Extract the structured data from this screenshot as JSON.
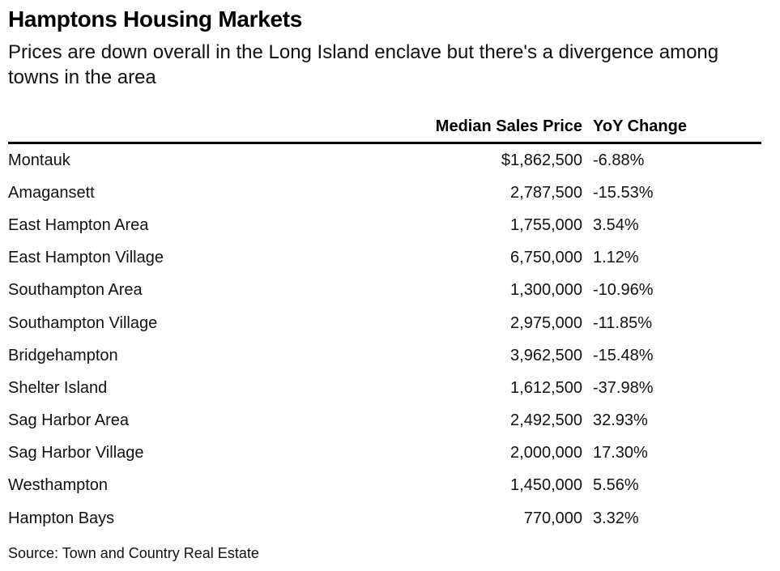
{
  "title": "Hamptons Housing Markets",
  "subtitle": "Prices are down overall in the Long Island enclave but there's a divergence among towns in the area",
  "source": "Source: Town and Country Real Estate",
  "chart_data": {
    "type": "table",
    "title": "Hamptons Housing Markets",
    "subtitle": "Prices are down overall in the Long Island enclave but there's a divergence among towns in the area",
    "columns": [
      "",
      "Median Sales Price",
      "YoY Change"
    ],
    "rows": [
      [
        "Montauk",
        "$1,862,500",
        "-6.88%"
      ],
      [
        "Amagansett",
        "2,787,500",
        "-15.53%"
      ],
      [
        "East Hampton Area",
        "1,755,000",
        "3.54%"
      ],
      [
        "East Hampton Village",
        "6,750,000",
        "1.12%"
      ],
      [
        "Southampton Area",
        "1,300,000",
        "-10.96%"
      ],
      [
        "Southampton Village",
        "2,975,000",
        "-11.85%"
      ],
      [
        "Bridgehampton",
        "3,962,500",
        "-15.48%"
      ],
      [
        "Shelter Island",
        "1,612,500",
        "-37.98%"
      ],
      [
        "Sag Harbor Area",
        "2,492,500",
        "32.93%"
      ],
      [
        "Sag Harbor Village",
        "2,000,000",
        "17.30%"
      ],
      [
        "Westhampton",
        "1,450,000",
        "5.56%"
      ],
      [
        "Hampton Bays",
        "770,000",
        "3.32%"
      ]
    ],
    "source": "Source: Town and Country Real Estate"
  }
}
